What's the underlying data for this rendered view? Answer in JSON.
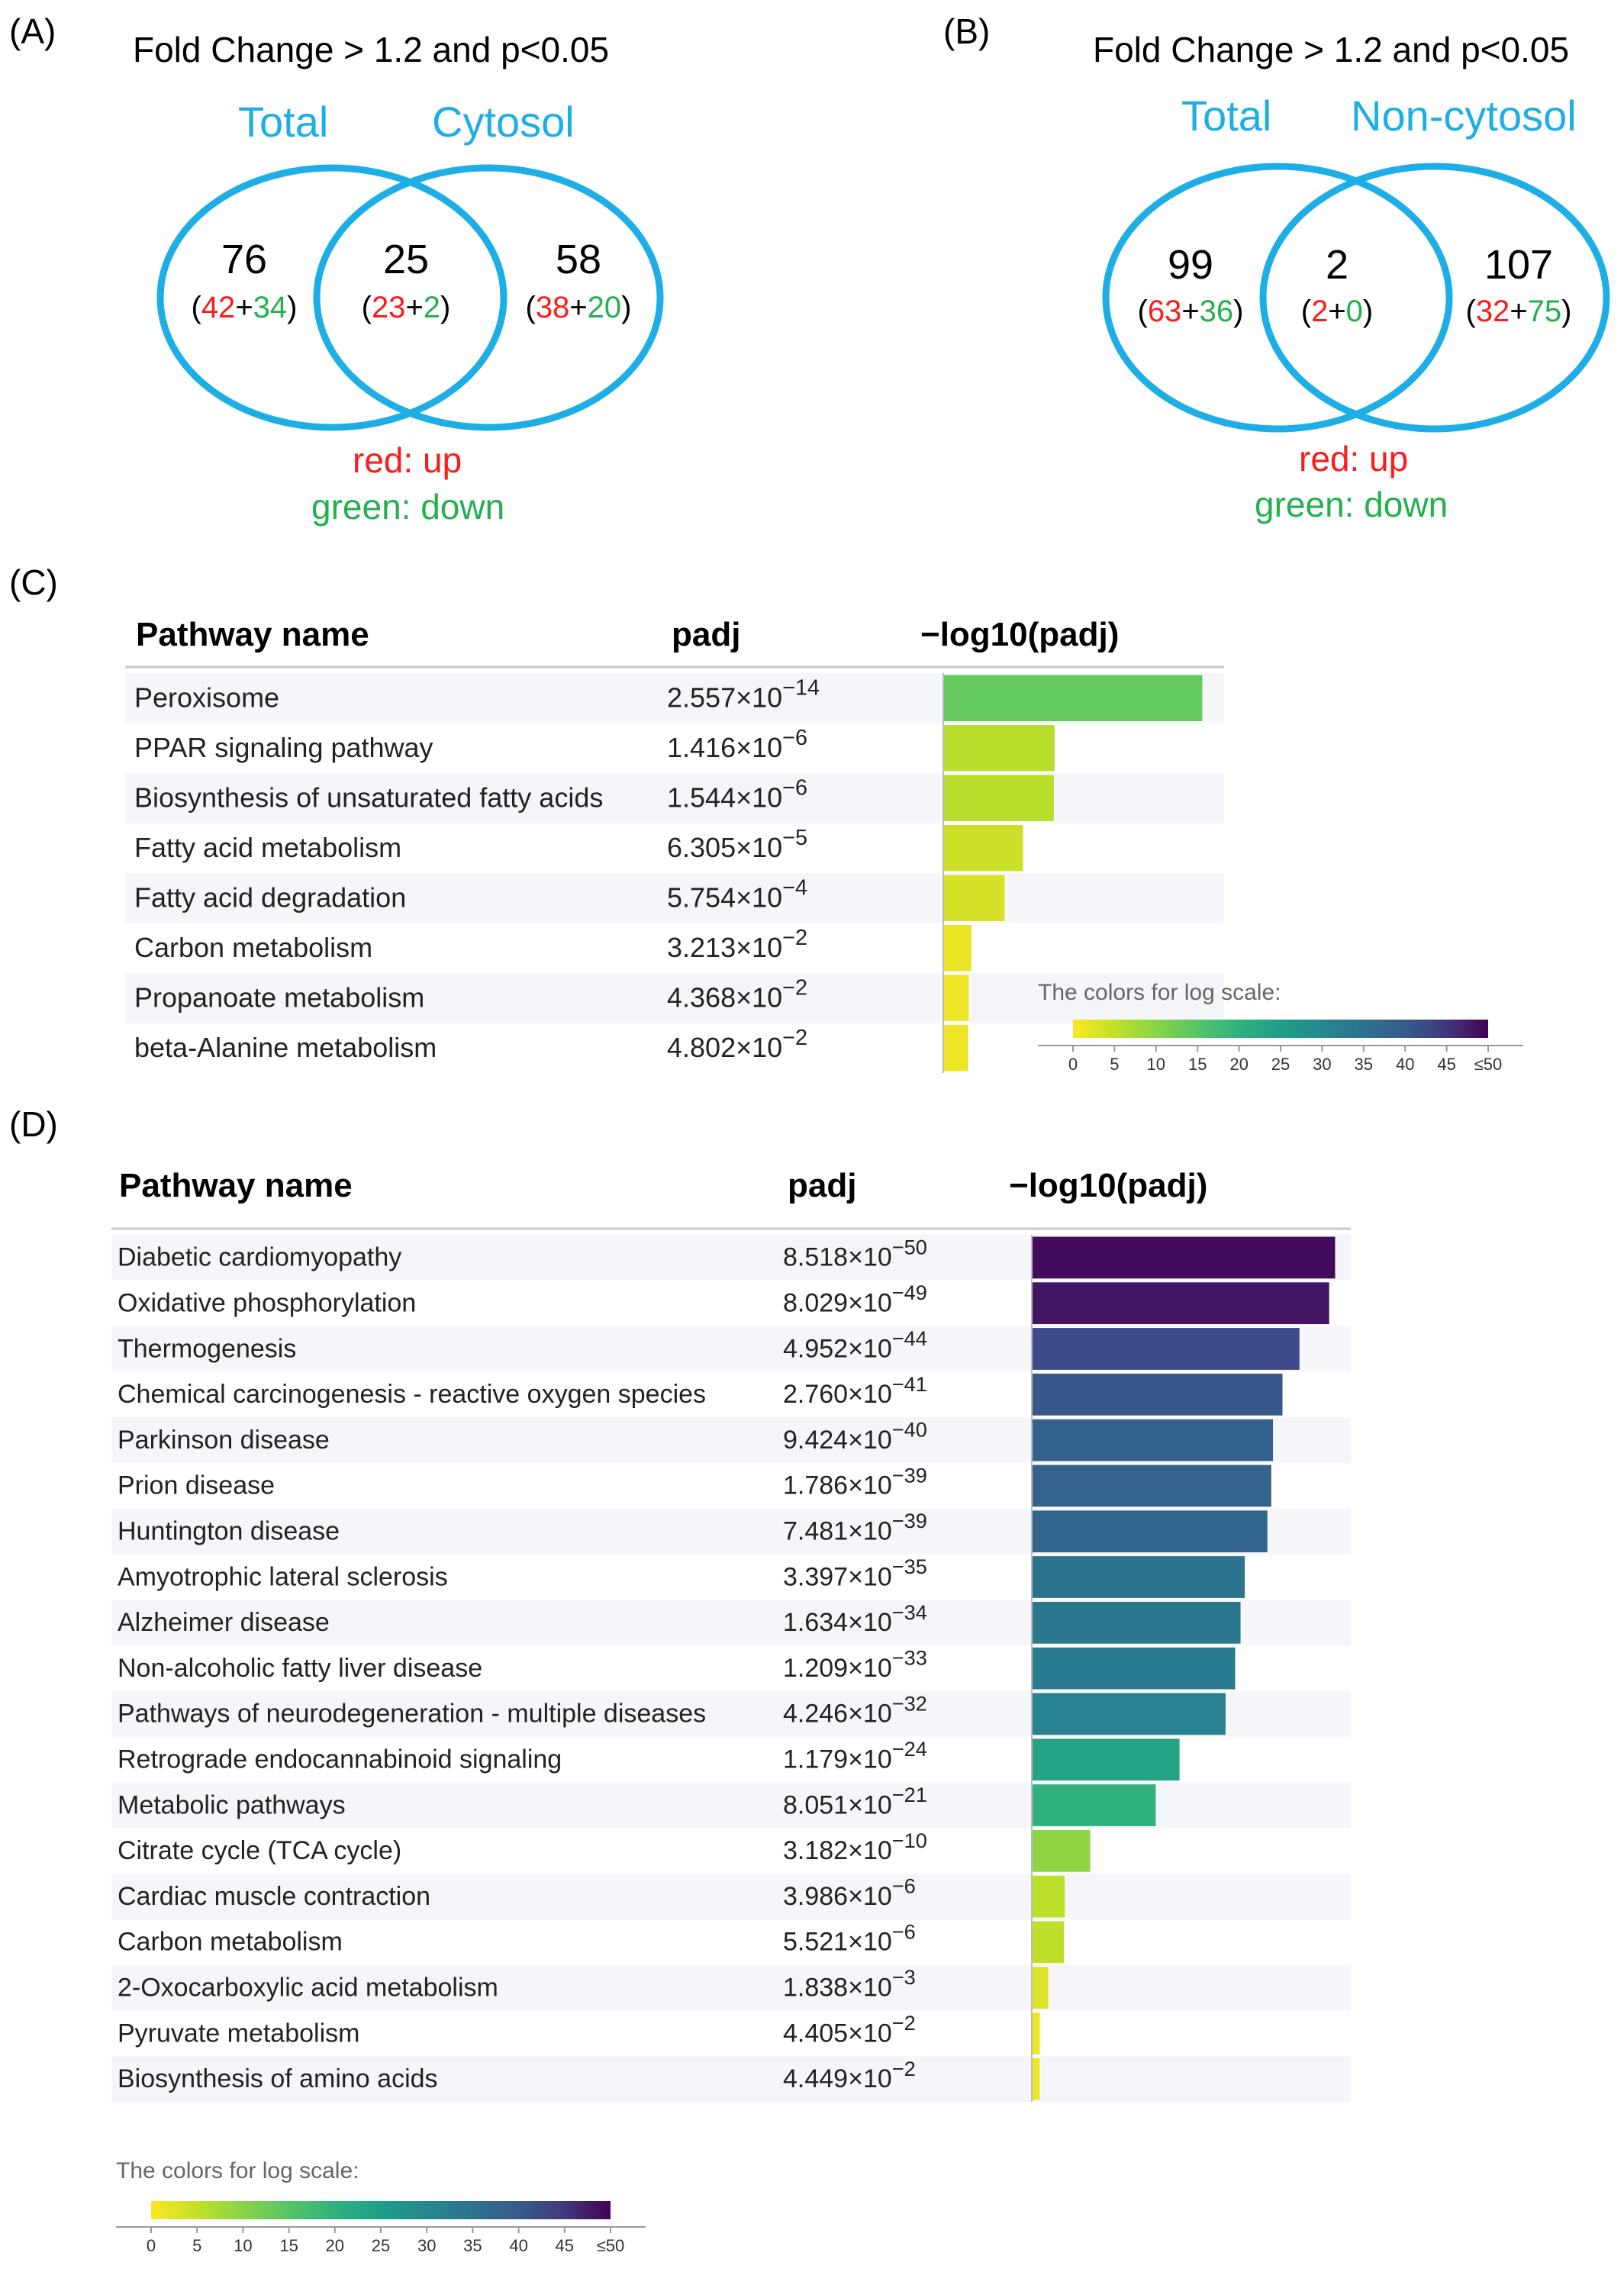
{
  "panel_labels": {
    "a": "(A)",
    "b": "(B)",
    "c": "(C)",
    "d": "(D)"
  },
  "venn_a": {
    "title": "Fold Change > 1.2 and p<0.05",
    "left_label": "Total",
    "right_label": "Cytosol",
    "left": {
      "total": "76",
      "up": "42",
      "down": "34"
    },
    "middle": {
      "total": "25",
      "up": "23",
      "down": "2"
    },
    "right": {
      "total": "58",
      "up": "38",
      "down": "20"
    },
    "legend_up": "red: up",
    "legend_down": "green: down"
  },
  "venn_b": {
    "title": "Fold Change > 1.2 and p<0.05",
    "left_label": "Total",
    "right_label": "Non-cytosol",
    "left": {
      "total": "99",
      "up": "63",
      "down": "36"
    },
    "middle": {
      "total": "2",
      "up": "2",
      "down": "0"
    },
    "right": {
      "total": "107",
      "up": "32",
      "down": "75"
    },
    "legend_up": "red: up",
    "legend_down": "green: down"
  },
  "colors": {
    "circle": "#1eaee6",
    "up": "#ff1a1a",
    "down": "#22b14c"
  },
  "chart_data": [
    {
      "type": "bar",
      "orientation": "horizontal",
      "headers": {
        "name": "Pathway name",
        "padj": "padj",
        "bar": "−log10(padj)"
      },
      "rows": [
        {
          "name": "Peroxisome",
          "mant": "2.557",
          "exp": "-14",
          "value": 13.59
        },
        {
          "name": "PPAR signaling pathway",
          "mant": "1.416",
          "exp": "-6",
          "value": 5.85
        },
        {
          "name": "Biosynthesis of unsaturated fatty acids",
          "mant": "1.544",
          "exp": "-6",
          "value": 5.81
        },
        {
          "name": "Fatty acid metabolism",
          "mant": "6.305",
          "exp": "-5",
          "value": 4.2
        },
        {
          "name": "Fatty acid degradation",
          "mant": "5.754",
          "exp": "-4",
          "value": 3.24
        },
        {
          "name": "Carbon metabolism",
          "mant": "3.213",
          "exp": "-2",
          "value": 1.49
        },
        {
          "name": "Propanoate metabolism",
          "mant": "4.368",
          "exp": "-2",
          "value": 1.36
        },
        {
          "name": "beta-Alanine metabolism",
          "mant": "4.802",
          "exp": "-2",
          "value": 1.32
        }
      ],
      "colorscale": {
        "title": "The colors for log scale:",
        "ticks": [
          "0",
          "5",
          "10",
          "15",
          "20",
          "25",
          "30",
          "35",
          "40",
          "45",
          "≤50"
        ],
        "range": [
          0,
          50
        ]
      }
    },
    {
      "type": "bar",
      "orientation": "horizontal",
      "headers": {
        "name": "Pathway name",
        "padj": "padj",
        "bar": "−log10(padj)"
      },
      "rows": [
        {
          "name": "Diabetic cardiomyopathy",
          "mant": "8.518",
          "exp": "-50",
          "value": 49.07
        },
        {
          "name": "Oxidative phosphorylation",
          "mant": "8.029",
          "exp": "-49",
          "value": 48.1
        },
        {
          "name": "Thermogenesis",
          "mant": "4.952",
          "exp": "-44",
          "value": 43.31
        },
        {
          "name": "Chemical carcinogenesis - reactive oxygen species",
          "mant": "2.760",
          "exp": "-41",
          "value": 40.56
        },
        {
          "name": "Parkinson disease",
          "mant": "9.424",
          "exp": "-40",
          "value": 39.03
        },
        {
          "name": "Prion disease",
          "mant": "1.786",
          "exp": "-39",
          "value": 38.75
        },
        {
          "name": "Huntington disease",
          "mant": "7.481",
          "exp": "-39",
          "value": 38.13
        },
        {
          "name": "Amyotrophic lateral sclerosis",
          "mant": "3.397",
          "exp": "-35",
          "value": 34.47
        },
        {
          "name": "Alzheimer disease",
          "mant": "1.634",
          "exp": "-34",
          "value": 33.79
        },
        {
          "name": "Non-alcoholic fatty liver disease",
          "mant": "1.209",
          "exp": "-33",
          "value": 32.92
        },
        {
          "name": "Pathways of neurodegeneration - multiple diseases",
          "mant": "4.246",
          "exp": "-32",
          "value": 31.37
        },
        {
          "name": "Retrograde endocannabinoid signaling",
          "mant": "1.179",
          "exp": "-24",
          "value": 23.93
        },
        {
          "name": "Metabolic pathways",
          "mant": "8.051",
          "exp": "-21",
          "value": 20.09
        },
        {
          "name": "Citrate cycle (TCA cycle)",
          "mant": "3.182",
          "exp": "-10",
          "value": 9.5
        },
        {
          "name": "Cardiac muscle contraction",
          "mant": "3.986",
          "exp": "-6",
          "value": 5.4
        },
        {
          "name": "Carbon metabolism",
          "mant": "5.521",
          "exp": "-6",
          "value": 5.26
        },
        {
          "name": "2-Oxocarboxylic acid metabolism",
          "mant": "1.838",
          "exp": "-3",
          "value": 2.74
        },
        {
          "name": "Pyruvate metabolism",
          "mant": "4.405",
          "exp": "-2",
          "value": 1.36
        },
        {
          "name": "Biosynthesis of amino acids",
          "mant": "4.449",
          "exp": "-2",
          "value": 1.35
        }
      ],
      "colorscale": {
        "title": "The colors for log scale:",
        "ticks": [
          "0",
          "5",
          "10",
          "15",
          "20",
          "25",
          "30",
          "35",
          "40",
          "45",
          "≤50"
        ],
        "range": [
          0,
          50
        ]
      }
    }
  ]
}
